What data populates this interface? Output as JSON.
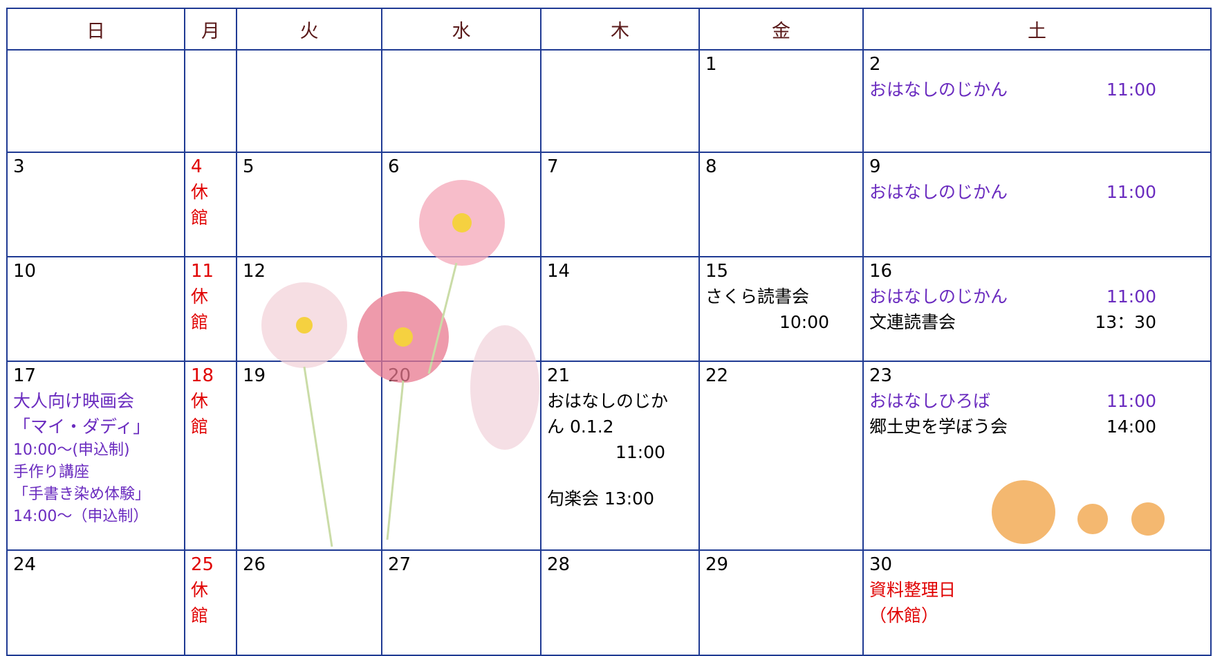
{
  "header": {
    "days": [
      "日",
      "月",
      "火",
      "水",
      "木",
      "金",
      "土"
    ]
  },
  "weeks": [
    [
      null,
      null,
      null,
      null,
      null,
      {
        "day": 1
      },
      {
        "day": 2,
        "lines": [
          {
            "text": "おはなしのじかん",
            "time": "11:00",
            "color": "#6a2bbf"
          }
        ]
      }
    ],
    [
      {
        "day": 3
      },
      {
        "day": 4,
        "day_color": "#e00000",
        "lines": [
          {
            "text": "休",
            "color": "#e00000"
          },
          {
            "text": "館",
            "color": "#e00000"
          }
        ]
      },
      {
        "day": 5
      },
      {
        "day": 6
      },
      {
        "day": 7
      },
      {
        "day": 8
      },
      {
        "day": 9,
        "lines": [
          {
            "text": "おはなしのじかん",
            "time": "11:00",
            "color": "#6a2bbf"
          }
        ]
      }
    ],
    [
      {
        "day": 10
      },
      {
        "day": 11,
        "day_color": "#e00000",
        "lines": [
          {
            "text": "休",
            "color": "#e00000"
          },
          {
            "text": "館",
            "color": "#e00000"
          }
        ]
      },
      {
        "day": 12
      },
      null,
      {
        "day": 14
      },
      {
        "day": 15,
        "lines": [
          {
            "text": "さくら読書会"
          },
          {
            "time": "10:00"
          }
        ]
      },
      {
        "day": 16,
        "lines": [
          {
            "text": "おはなしのじかん",
            "time": "11:00",
            "color": "#6a2bbf"
          },
          {
            "text": "文連読書会",
            "time": "13：30"
          }
        ]
      }
    ],
    [
      {
        "day": 17,
        "lines": [
          {
            "text": "大人向け映画会",
            "color": "#6a2bbf"
          },
          {
            "text": "「マイ・ダディ」",
            "color": "#6a2bbf"
          },
          {
            "text": "10:00～(申込制)",
            "color": "#6a2bbf",
            "small": true
          },
          {
            "text": "手作り講座",
            "color": "#6a2bbf",
            "small": true
          },
          {
            "text": "「手書き染め体験」",
            "color": "#6a2bbf",
            "small": true
          },
          {
            "text": "14:00～（申込制）",
            "color": "#6a2bbf",
            "small": true
          }
        ]
      },
      {
        "day": 18,
        "day_color": "#e00000",
        "lines": [
          {
            "text": "休",
            "color": "#e00000"
          },
          {
            "text": "館",
            "color": "#e00000"
          }
        ]
      },
      {
        "day": 19
      },
      {
        "day": 20
      },
      {
        "day": 21,
        "lines": [
          {
            "text": "おはなしのじか"
          },
          {
            "text": "ん 0.1.2"
          },
          {
            "time": "11:00"
          },
          {
            "gap": true
          },
          {
            "text": "句楽会 13:00"
          }
        ]
      },
      {
        "day": 22
      },
      {
        "day": 23,
        "lines": [
          {
            "text": "おはなしひろば",
            "time": "11:00",
            "color": "#6a2bbf"
          },
          {
            "text": "郷土史を学ぼう会",
            "time": "14:00"
          }
        ]
      }
    ],
    [
      {
        "day": 24
      },
      {
        "day": 25,
        "day_color": "#e00000",
        "lines": [
          {
            "text": "休",
            "color": "#e00000"
          },
          {
            "text": "館",
            "color": "#e00000"
          }
        ]
      },
      {
        "day": 26
      },
      {
        "day": 27
      },
      {
        "day": 28
      },
      {
        "day": 29
      },
      {
        "day": 30,
        "lines": [
          {
            "text": "資料整理日",
            "color": "#e00000"
          },
          {
            "text": "（休館）",
            "color": "#e00000"
          }
        ]
      }
    ]
  ]
}
